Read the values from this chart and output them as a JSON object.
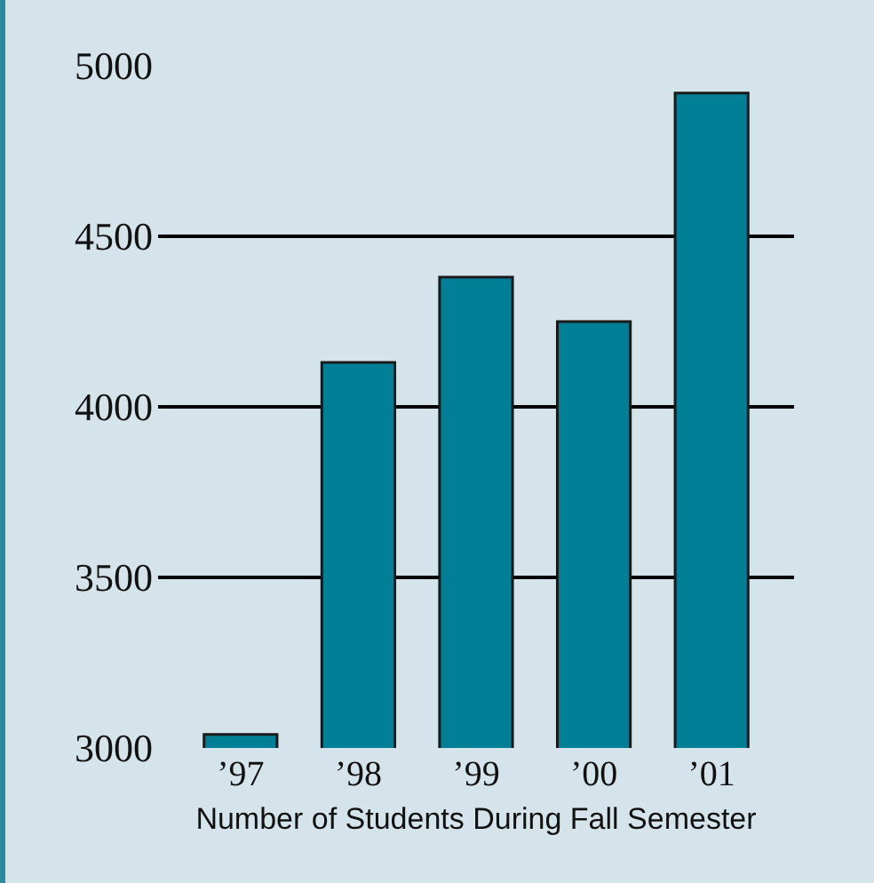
{
  "chart_data": {
    "type": "bar",
    "xlabel": "Number of Students During Fall Semester",
    "categories": [
      "’97",
      "’98",
      "’99",
      "’00",
      "’01"
    ],
    "values": [
      3040,
      4130,
      4380,
      4250,
      4920
    ],
    "color": "#007f96",
    "ylim": [
      3000,
      5000
    ],
    "yticks": [
      3000,
      3500,
      4000,
      4500,
      5000
    ],
    "grid": "y"
  }
}
